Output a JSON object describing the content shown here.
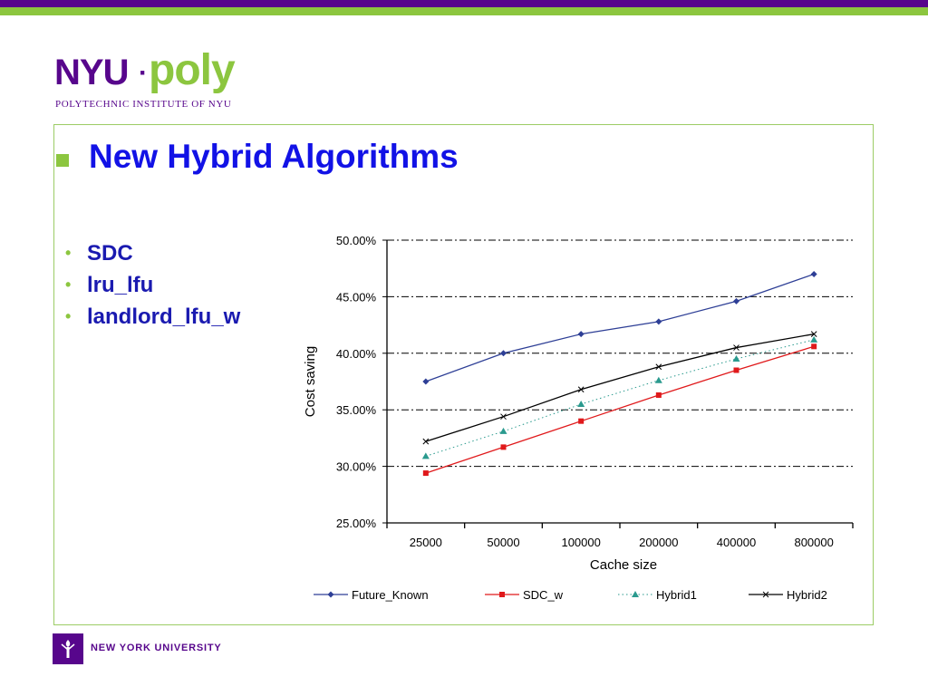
{
  "header": {
    "logo_nyu": "NYU",
    "logo_dot": "·",
    "logo_poly": "poly",
    "logo_subtitle": "POLYTECHNIC INSTITUTE OF NYU"
  },
  "slide": {
    "title": "New Hybrid Algorithms",
    "bullets": [
      "SDC",
      "lru_lfu",
      "landlord_lfu_w"
    ]
  },
  "footer": {
    "org_name": "NEW YORK UNIVERSITY",
    "logo_icon": "torch-icon"
  },
  "colors": {
    "top_bar_purple": "#57068c",
    "top_bar_green": "#8cc63f",
    "title_blue": "#1212e6",
    "future_known": "#2e3f96",
    "sdc_w": "#e0191b",
    "hybrid1": "#2a9a8e",
    "hybrid2": "#000000"
  },
  "chart_data": {
    "type": "line",
    "title": "",
    "xlabel": "Cache size",
    "ylabel": "Cost saving",
    "categories": [
      "25000",
      "50000",
      "100000",
      "200000",
      "400000",
      "800000"
    ],
    "ylim": [
      25,
      50
    ],
    "yticks": [
      25,
      30,
      35,
      40,
      45,
      50
    ],
    "ytick_labels": [
      "25.00%",
      "30.00%",
      "35.00%",
      "40.00%",
      "45.00%",
      "50.00%"
    ],
    "grid": "horizontal dash-dot",
    "legend_position": "bottom",
    "series": [
      {
        "name": "Future_Known",
        "values": [
          37.5,
          40.0,
          41.7,
          42.8,
          44.6,
          47.0
        ],
        "marker": "diamond",
        "line": "solid",
        "color": "#2e3f96"
      },
      {
        "name": "SDC_w",
        "values": [
          29.4,
          31.7,
          34.0,
          36.3,
          38.5,
          40.6
        ],
        "marker": "square",
        "line": "solid",
        "color": "#e0191b"
      },
      {
        "name": "Hybrid1",
        "values": [
          30.9,
          33.1,
          35.5,
          37.6,
          39.5,
          41.2
        ],
        "marker": "triangle",
        "line": "dotted",
        "color": "#2a9a8e"
      },
      {
        "name": "Hybrid2",
        "values": [
          32.2,
          34.4,
          36.8,
          38.8,
          40.5,
          41.7
        ],
        "marker": "star",
        "line": "solid",
        "color": "#000000"
      }
    ]
  }
}
